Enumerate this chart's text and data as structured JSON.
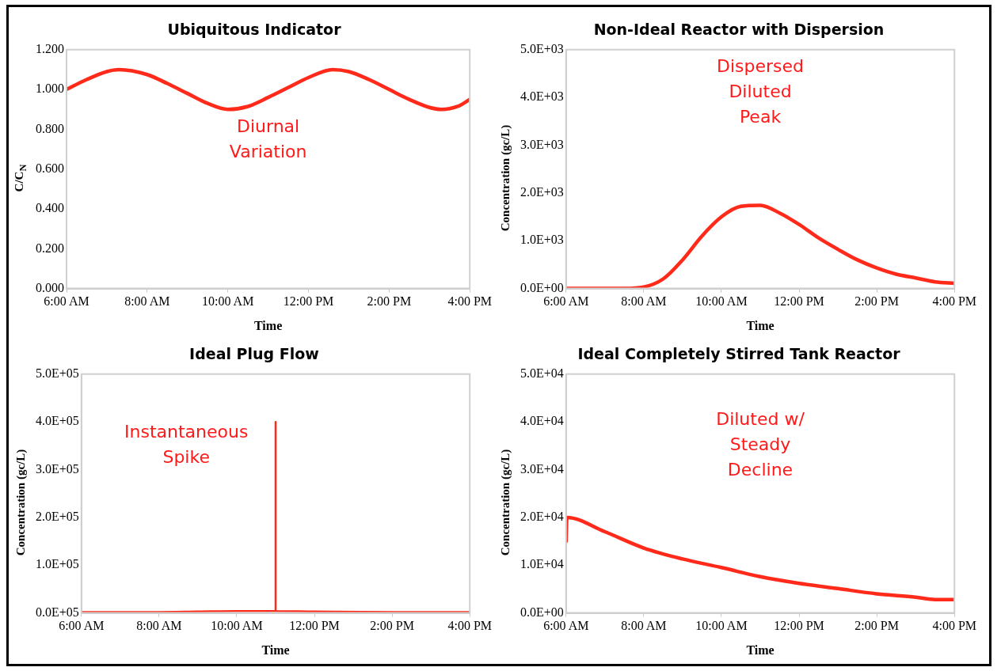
{
  "chart_data": [
    {
      "type": "line",
      "title": "Ubiquitous Indicator",
      "xlabel": "Time",
      "ylabel": "C/C$_{N}$",
      "annotations": [
        "Diurnal Variation"
      ],
      "xlim": [
        6,
        16
      ],
      "xticks": [
        {
          "value": 6,
          "label": "6:00 AM"
        },
        {
          "value": 8,
          "label": "8:00 AM"
        },
        {
          "value": 10,
          "label": "10:00 AM"
        },
        {
          "value": 12,
          "label": "12:00 PM"
        },
        {
          "value": 14,
          "label": "2:00 PM"
        },
        {
          "value": 16,
          "label": "4:00 PM"
        }
      ],
      "ylim": [
        0,
        1.2
      ],
      "yticks": [
        {
          "value": 0,
          "label": "0.000"
        },
        {
          "value": 0.2,
          "label": "0.200"
        },
        {
          "value": 0.4,
          "label": "0.400"
        },
        {
          "value": 0.6,
          "label": "0.600"
        },
        {
          "value": 0.8,
          "label": "0.800"
        },
        {
          "value": 1,
          "label": "1.000"
        },
        {
          "value": 1.2,
          "label": "1.200"
        }
      ],
      "grid": false,
      "legend": false,
      "marker": "none",
      "line_style": "solid",
      "series": [
        {
          "color": "#ff2a1a",
          "x": [
            6,
            6.5,
            7,
            7.3,
            8,
            8.5,
            9,
            9.5,
            10,
            10.5,
            11,
            11.5,
            12,
            12.6,
            13,
            13.5,
            14,
            14.5,
            15,
            15.3,
            15.7,
            16
          ],
          "values": [
            1.0,
            1.05,
            1.09,
            1.1,
            1.075,
            1.03,
            0.98,
            0.93,
            0.9,
            0.915,
            0.96,
            1.01,
            1.06,
            1.1,
            1.09,
            1.05,
            1.0,
            0.95,
            0.91,
            0.9,
            0.915,
            0.95
          ]
        }
      ]
    },
    {
      "type": "line",
      "title": "Non-Ideal Reactor with Dispersion",
      "xlabel": "Time",
      "ylabel": "Concentration (gc/L)",
      "annotations": [
        "Dispersed Diluted Peak"
      ],
      "xlim": [
        6,
        16
      ],
      "xticks": [
        {
          "value": 6,
          "label": "6:00 AM"
        },
        {
          "value": 8,
          "label": "8:00 AM"
        },
        {
          "value": 10,
          "label": "10:00 AM"
        },
        {
          "value": 12,
          "label": "12:00 PM"
        },
        {
          "value": 14,
          "label": "2:00 PM"
        },
        {
          "value": 16,
          "label": "4:00 PM"
        }
      ],
      "ylim": [
        0,
        5000
      ],
      "yticks": [
        {
          "value": 0,
          "label": "0.0E+00"
        },
        {
          "value": 1000,
          "label": "1.0E+03"
        },
        {
          "value": 2000,
          "label": "2.0E+03"
        },
        {
          "value": 3000,
          "label": "3.0E+03"
        },
        {
          "value": 4000,
          "label": "4.0E+03"
        },
        {
          "value": 5000,
          "label": "5.0E+03"
        }
      ],
      "grid": false,
      "legend": false,
      "marker": "none",
      "line_style": "solid",
      "series": [
        {
          "color": "#ff2a1a",
          "x": [
            6,
            6.5,
            7,
            7.5,
            8,
            8.5,
            9,
            9.5,
            10,
            10.5,
            11,
            11.5,
            12,
            12.5,
            13,
            13.5,
            14,
            14.5,
            15,
            15.5,
            16
          ],
          "values": [
            0,
            0,
            0,
            0,
            30,
            200,
            600,
            1100,
            1500,
            1720,
            1740,
            1580,
            1340,
            1060,
            820,
            600,
            430,
            300,
            220,
            140,
            110
          ]
        }
      ]
    },
    {
      "type": "line",
      "title": "Ideal Plug Flow",
      "xlabel": "Time",
      "ylabel": "Concentration (gc/L)",
      "annotations": [
        "Instantaneous Spike"
      ],
      "xlim": [
        6,
        16
      ],
      "xticks": [
        {
          "value": 6,
          "label": "6:00 AM"
        },
        {
          "value": 8,
          "label": "8:00 AM"
        },
        {
          "value": 10,
          "label": "10:00 AM"
        },
        {
          "value": 12,
          "label": "12:00 PM"
        },
        {
          "value": 14,
          "label": "2:00 PM"
        },
        {
          "value": 16,
          "label": "4:00 PM"
        }
      ],
      "ylim": [
        0,
        500000
      ],
      "yticks": [
        {
          "value": 0,
          "label": "0.0E+05"
        },
        {
          "value": 100000,
          "label": "1.0E+05"
        },
        {
          "value": 200000,
          "label": "2.0E+05"
        },
        {
          "value": 300000,
          "label": "3.0E+05"
        },
        {
          "value": 400000,
          "label": "4.0E+05"
        },
        {
          "value": 500000,
          "label": "5.0E+05"
        }
      ],
      "grid": false,
      "legend": false,
      "marker": "none",
      "line_style": "solid",
      "series": [
        {
          "color": "#ff2a1a",
          "x": [
            6,
            8,
            9,
            10,
            11,
            11,
            11,
            12,
            14,
            16
          ],
          "values": [
            2000,
            2000,
            3000,
            4000,
            4000,
            400000,
            4000,
            3000,
            2000,
            2000
          ]
        }
      ]
    },
    {
      "type": "line",
      "title": "Ideal Completely Stirred Tank Reactor",
      "xlabel": "Time",
      "ylabel": "Concentration (gc/L)",
      "annotations": [
        "Diluted w/ Steady Decline"
      ],
      "xlim": [
        6,
        16
      ],
      "xticks": [
        {
          "value": 6,
          "label": "6:00 AM"
        },
        {
          "value": 8,
          "label": "8:00 AM"
        },
        {
          "value": 10,
          "label": "10:00 AM"
        },
        {
          "value": 12,
          "label": "12:00 PM"
        },
        {
          "value": 14,
          "label": "2:00 PM"
        },
        {
          "value": 16,
          "label": "4:00 PM"
        }
      ],
      "ylim": [
        0,
        50000
      ],
      "yticks": [
        {
          "value": 0,
          "label": "0.0E+00"
        },
        {
          "value": 10000,
          "label": "1.0E+04"
        },
        {
          "value": 20000,
          "label": "2.0E+04"
        },
        {
          "value": 30000,
          "label": "3.0E+04"
        },
        {
          "value": 40000,
          "label": "4.0E+04"
        },
        {
          "value": 50000,
          "label": "5.0E+04"
        }
      ],
      "grid": false,
      "legend": false,
      "marker": "none",
      "line_style": "solid",
      "series": [
        {
          "color": "#ff2a1a",
          "x": [
            6,
            6.02,
            7,
            8,
            9,
            10,
            11,
            12,
            13,
            14,
            15,
            15.5,
            16
          ],
          "values": [
            15000,
            20000,
            17000,
            13600,
            11300,
            9500,
            7600,
            6200,
            5100,
            4000,
            3300,
            2800,
            2800
          ]
        }
      ]
    }
  ]
}
